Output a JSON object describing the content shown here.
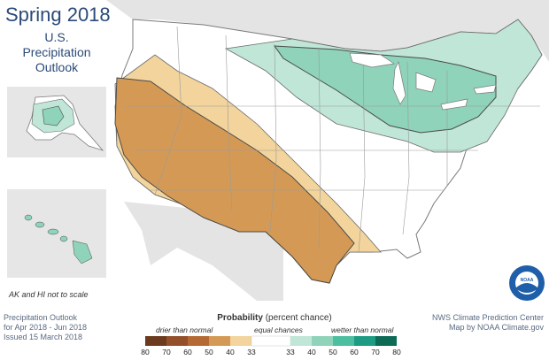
{
  "title": "Spring 2018",
  "subtitle": [
    "U.S.",
    "Precipitation",
    "Outlook"
  ],
  "inset_note": "AK and HI not to scale",
  "footer_left": [
    "Precipitation Outlook",
    "for Apr 2018 - Jun 2018",
    "Issued 15 March 2018"
  ],
  "footer_right": [
    "NWS Climate Prediction Center",
    "Map by NOAA Climate.gov"
  ],
  "legend": {
    "title_bold": "Probability",
    "title_rest": " (percent chance)",
    "drier_label": "drier than normal",
    "equal_label": "equal chances",
    "wetter_label": "wetter than normal",
    "ticks": [
      "80",
      "70",
      "60",
      "50",
      "40",
      "33",
      "33",
      "40",
      "50",
      "60",
      "70",
      "80"
    ],
    "dry_colors": [
      "#6b3a1f",
      "#93502a",
      "#b56a33",
      "#d49a55",
      "#f2d49c"
    ],
    "wet_colors": [
      "#bfe6d7",
      "#8fd3ba",
      "#4dbfa0",
      "#1d9c83",
      "#0d6b55"
    ]
  },
  "map_colors": {
    "land": "#ffffff",
    "neighbor": "#e4e4e4",
    "water": "#ffffff",
    "dry_33_40": "#f2d49c",
    "dry_40_50": "#d49a55",
    "wet_33_40": "#bfe6d7",
    "wet_40_50": "#8fd3ba",
    "border": "#8a8a8a",
    "inset_bg": "#e6e6e6"
  },
  "logo": {
    "text": "NOAA"
  }
}
